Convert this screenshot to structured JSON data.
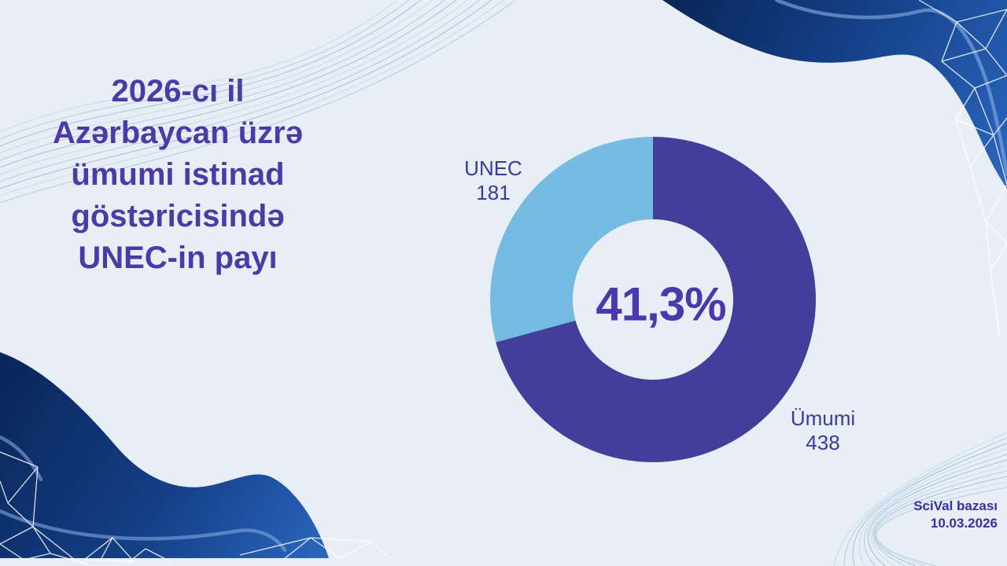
{
  "page": {
    "background": "#e8eef5"
  },
  "title": {
    "lines": [
      "2026-cı il",
      "Azərbaycan üzrə",
      "ümumi istinad",
      "göstəricisində",
      "UNEC-in payı"
    ],
    "color": "#4a3ba6"
  },
  "chart_data": {
    "type": "pie",
    "subtype": "donut",
    "start_angle_deg": 0,
    "direction": "clockwise-from-top",
    "center_label": "41,3%",
    "center_label_color": "#4c38ae",
    "label_color": "#3c3a9b",
    "slices": [
      {
        "label": "Ümumi",
        "value": 438,
        "color": "#413f99"
      },
      {
        "label": "UNEC",
        "value": 181,
        "color": "#76bce2"
      }
    ]
  },
  "footer": {
    "line1": "SciVal bazası",
    "line2": "10.03.2026",
    "color": "#3a2f9f"
  },
  "decor": {
    "wave_navy_dark": "#0a2558",
    "wave_navy_mid": "#143f86",
    "wave_navy_bright": "#2b67c0",
    "wave_highlight": "#7fa9de",
    "mesh_color": "#ffffff",
    "thin_line_colors": [
      "#b3cfe3",
      "#8cb8d6",
      "#6fa3c8"
    ]
  }
}
